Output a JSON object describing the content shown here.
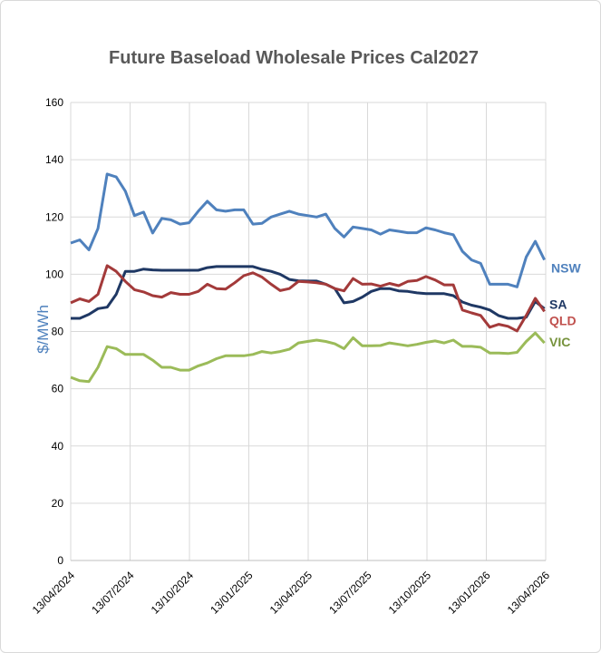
{
  "chart_data": {
    "type": "line",
    "title": "Future Baseload Wholesale Prices Cal2027",
    "xlabel": "",
    "ylabel": "$/MWh",
    "ylim": [
      0,
      160
    ],
    "yticks": [
      0,
      20,
      40,
      60,
      80,
      100,
      120,
      140,
      160
    ],
    "x_start": "2024-04-13",
    "x_end": "2026-04-13",
    "x_step_days": 14,
    "xtick_labels": [
      "13/04/2024",
      "13/07/2024",
      "13/10/2024",
      "13/01/2025",
      "13/04/2025",
      "13/07/2025",
      "13/10/2025",
      "13/01/2026",
      "13/04/2026"
    ],
    "grid": true,
    "legend": "end-of-line labels, right",
    "series": [
      {
        "name": "NSW",
        "color": "#4f81bd",
        "label_color": "#4f81bd",
        "values": [
          110.9,
          112,
          108.5,
          116,
          135,
          134,
          129,
          120.5,
          121.7,
          114.4,
          119.5,
          119,
          117.5,
          118,
          122,
          125.5,
          122.5,
          122,
          122.5,
          122.5,
          117.5,
          117.8,
          120,
          121,
          122,
          121,
          120.5,
          120,
          121,
          116,
          113,
          116.5,
          116,
          115.5,
          114,
          115.5,
          115,
          114.5,
          114.5,
          116.2,
          115.5,
          114.5,
          113.8,
          108,
          105,
          103.8,
          96.5,
          96.5,
          96.5,
          95.6,
          106,
          111.5,
          105
        ]
      },
      {
        "name": "SA",
        "color": "#1f3864",
        "label_color": "#1f3864",
        "values": [
          84.6,
          84.6,
          86,
          88,
          88.5,
          93,
          101,
          101,
          101.8,
          101.5,
          101.4,
          101.4,
          101.4,
          101.4,
          101.4,
          102.3,
          102.7,
          102.7,
          102.7,
          102.7,
          102.7,
          101.7,
          101,
          100,
          98.2,
          97.7,
          97.6,
          97.6,
          96.5,
          95,
          90,
          90.5,
          92,
          94,
          95,
          95,
          94.2,
          94,
          93.5,
          93.2,
          93.2,
          93.2,
          92.5,
          90.3,
          89.2,
          88.5,
          87.5,
          85.5,
          84.6,
          84.6,
          85,
          90.5,
          88
        ]
      },
      {
        "name": "QLD",
        "color": "#a33a3a",
        "label_color": "#c0504d",
        "values": [
          90,
          91.4,
          90.5,
          93,
          103,
          101,
          97.5,
          94.6,
          93.8,
          92.5,
          92,
          93.6,
          93,
          93,
          94,
          96.5,
          95,
          94.8,
          97,
          99.5,
          100.5,
          99,
          96.5,
          94.3,
          95,
          97.5,
          97.3,
          97,
          96.5,
          95,
          94.2,
          98.5,
          96.5,
          96.6,
          95.8,
          96.8,
          96,
          97.5,
          97.8,
          99.2,
          98,
          96.3,
          96.3,
          87.5,
          86.5,
          85.6,
          81.5,
          82.5,
          81.8,
          80.2,
          85.6,
          91.6,
          87
        ]
      },
      {
        "name": "VIC",
        "color": "#9bbb59",
        "label_color": "#76923c",
        "values": [
          64,
          62.8,
          62.5,
          67.5,
          74.7,
          74,
          72,
          72,
          72,
          70,
          67.5,
          67.5,
          66.5,
          66.5,
          68,
          69,
          70.5,
          71.5,
          71.5,
          71.5,
          72,
          73,
          72.5,
          73,
          73.8,
          76,
          76.5,
          77,
          76.5,
          75.7,
          74,
          77.8,
          75,
          75,
          75.1,
          76,
          75.5,
          75,
          75.5,
          76.2,
          76.7,
          76,
          77,
          74.8,
          74.8,
          74.5,
          72.5,
          72.5,
          72.3,
          72.7,
          76.5,
          79.5,
          76
        ]
      }
    ]
  }
}
